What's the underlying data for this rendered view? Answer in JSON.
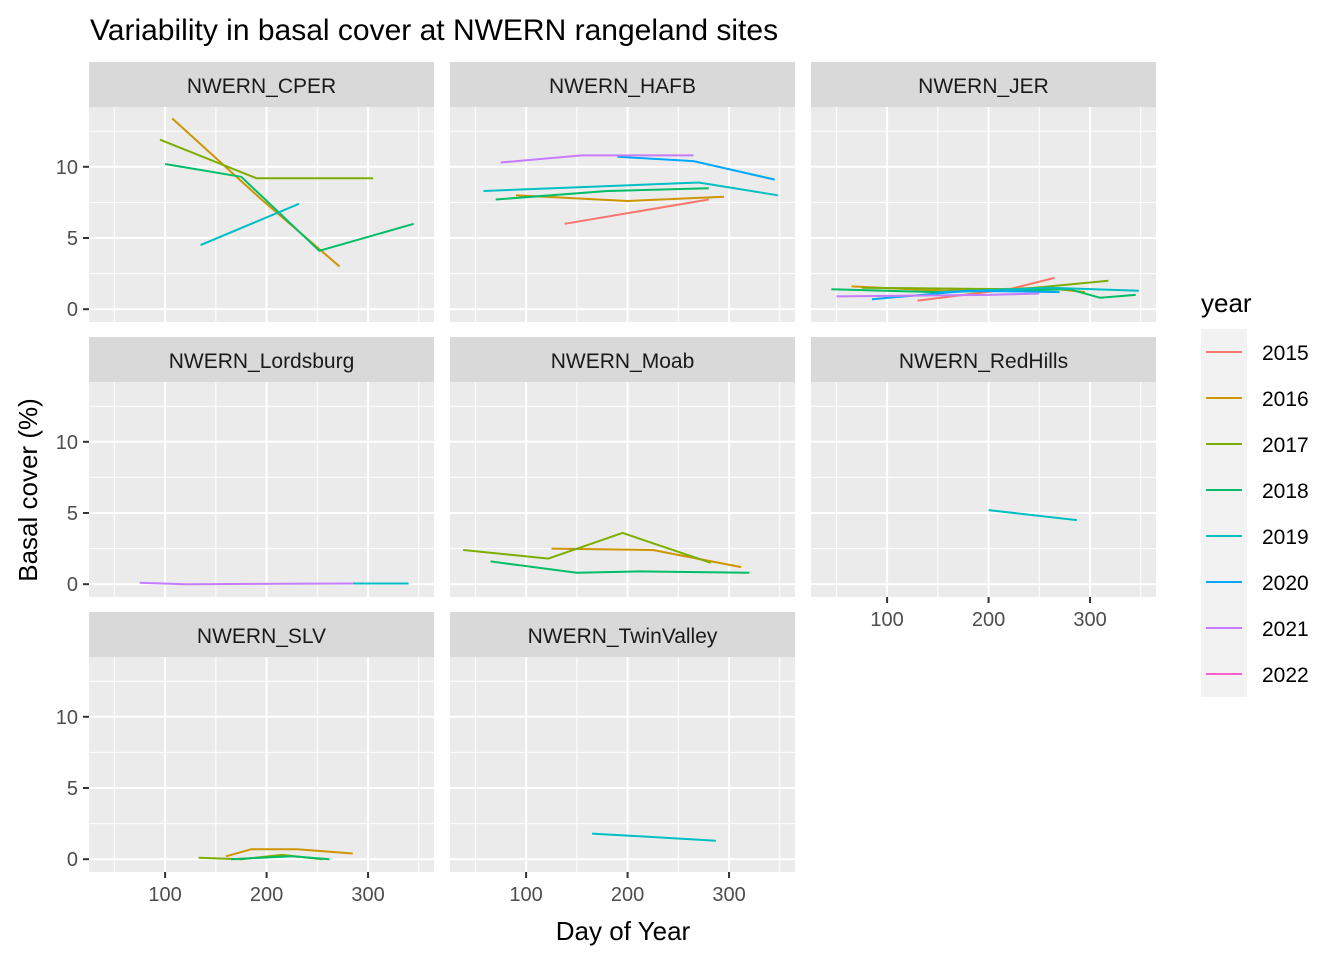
{
  "chart_data": {
    "type": "line",
    "title": "Variability in basal cover at NWERN rangeland sites",
    "xlabel": "Day of Year",
    "ylabel": "Basal cover (%)",
    "xlim": [
      25,
      365
    ],
    "ylim": [
      -0.9,
      14.2
    ],
    "x_ticks": [
      100,
      200,
      300
    ],
    "y_ticks": [
      0,
      5,
      10
    ],
    "grid": true,
    "legend": {
      "title": "year",
      "position": "right",
      "entries": [
        {
          "name": "2015",
          "color": "#F8766D"
        },
        {
          "name": "2016",
          "color": "#CD9600"
        },
        {
          "name": "2017",
          "color": "#7CAE00"
        },
        {
          "name": "2018",
          "color": "#00BE67"
        },
        {
          "name": "2019",
          "color": "#00BFC4"
        },
        {
          "name": "2020",
          "color": "#00A9FF"
        },
        {
          "name": "2021",
          "color": "#C77CFF"
        },
        {
          "name": "2022",
          "color": "#FF61CC"
        }
      ]
    },
    "facets": [
      {
        "name": "NWERN_CPER",
        "series": [
          {
            "name": "2016",
            "points": [
              [
                107,
                13.4
              ],
              [
                195,
                7.7
              ],
              [
                272,
                3.0
              ]
            ]
          },
          {
            "name": "2017",
            "points": [
              [
                95,
                11.9
              ],
              [
                190,
                9.2
              ],
              [
                305,
                9.2
              ]
            ]
          },
          {
            "name": "2018",
            "points": [
              [
                100,
                10.2
              ],
              [
                175,
                9.3
              ],
              [
                252,
                4.1
              ],
              [
                345,
                6.0
              ]
            ]
          },
          {
            "name": "2019",
            "points": [
              [
                135,
                4.5
              ],
              [
                232,
                7.4
              ]
            ]
          }
        ]
      },
      {
        "name": "NWERN_HAFB",
        "series": [
          {
            "name": "2015",
            "points": [
              [
                138,
                6.0
              ],
              [
                280,
                7.7
              ]
            ]
          },
          {
            "name": "2016",
            "points": [
              [
                90,
                8.0
              ],
              [
                200,
                7.6
              ],
              [
                295,
                7.9
              ]
            ]
          },
          {
            "name": "2018",
            "points": [
              [
                70,
                7.7
              ],
              [
                180,
                8.3
              ],
              [
                280,
                8.5
              ]
            ]
          },
          {
            "name": "2019",
            "points": [
              [
                58,
                8.3
              ],
              [
                270,
                8.9
              ],
              [
                348,
                8.0
              ]
            ]
          },
          {
            "name": "2020",
            "points": [
              [
                190,
                10.7
              ],
              [
                265,
                10.4
              ],
              [
                345,
                9.1
              ]
            ]
          },
          {
            "name": "2021",
            "points": [
              [
                75,
                10.3
              ],
              [
                155,
                10.8
              ],
              [
                265,
                10.8
              ]
            ]
          }
        ]
      },
      {
        "name": "NWERN_JER",
        "series": [
          {
            "name": "2015",
            "points": [
              [
                130,
                0.6
              ],
              [
                220,
                1.4
              ],
              [
                265,
                2.2
              ]
            ]
          },
          {
            "name": "2016",
            "points": [
              [
                65,
                1.6
              ],
              [
                155,
                1.3
              ],
              [
                255,
                1.5
              ],
              [
                295,
                1.2
              ]
            ]
          },
          {
            "name": "2017",
            "points": [
              [
                75,
                1.5
              ],
              [
                230,
                1.4
              ],
              [
                318,
                2.0
              ]
            ]
          },
          {
            "name": "2018",
            "points": [
              [
                45,
                1.4
              ],
              [
                150,
                1.2
              ],
              [
                280,
                1.4
              ],
              [
                310,
                0.8
              ],
              [
                345,
                1.0
              ]
            ]
          },
          {
            "name": "2019",
            "points": [
              [
                150,
                1.2
              ],
              [
                260,
                1.5
              ],
              [
                348,
                1.3
              ]
            ]
          },
          {
            "name": "2020",
            "points": [
              [
                85,
                0.7
              ],
              [
                180,
                1.3
              ],
              [
                270,
                1.2
              ]
            ]
          },
          {
            "name": "2021",
            "points": [
              [
                50,
                0.9
              ],
              [
                200,
                1.0
              ],
              [
                250,
                1.1
              ]
            ]
          }
        ]
      },
      {
        "name": "NWERN_Lordsburg",
        "series": [
          {
            "name": "2019",
            "points": [
              [
                285,
                0.05
              ],
              [
                340,
                0.05
              ]
            ]
          },
          {
            "name": "2021",
            "points": [
              [
                75,
                0.1
              ],
              [
                120,
                0.0
              ],
              [
                285,
                0.05
              ]
            ]
          }
        ]
      },
      {
        "name": "NWERN_Moab",
        "series": [
          {
            "name": "2016",
            "points": [
              [
                125,
                2.5
              ],
              [
                225,
                2.4
              ],
              [
                312,
                1.2
              ]
            ]
          },
          {
            "name": "2017",
            "points": [
              [
                38,
                2.4
              ],
              [
                122,
                1.8
              ],
              [
                195,
                3.6
              ],
              [
                282,
                1.5
              ]
            ]
          },
          {
            "name": "2018",
            "points": [
              [
                65,
                1.6
              ],
              [
                150,
                0.8
              ],
              [
                210,
                0.9
              ],
              [
                320,
                0.8
              ]
            ]
          }
        ]
      },
      {
        "name": "NWERN_RedHills",
        "series": [
          {
            "name": "2019",
            "points": [
              [
                200,
                5.2
              ],
              [
                287,
                4.5
              ]
            ]
          }
        ]
      },
      {
        "name": "NWERN_SLV",
        "series": [
          {
            "name": "2016",
            "points": [
              [
                160,
                0.2
              ],
              [
                185,
                0.7
              ],
              [
                230,
                0.7
              ],
              [
                285,
                0.4
              ]
            ]
          },
          {
            "name": "2017",
            "points": [
              [
                133,
                0.1
              ],
              [
                175,
                0.0
              ],
              [
                215,
                0.3
              ],
              [
                255,
                0.0
              ]
            ]
          },
          {
            "name": "2018",
            "points": [
              [
                165,
                0.0
              ],
              [
                225,
                0.2
              ],
              [
                262,
                0.0
              ]
            ]
          }
        ]
      },
      {
        "name": "NWERN_TwinValley",
        "series": [
          {
            "name": "2019",
            "points": [
              [
                165,
                1.8
              ],
              [
                287,
                1.3
              ]
            ]
          }
        ]
      }
    ]
  }
}
